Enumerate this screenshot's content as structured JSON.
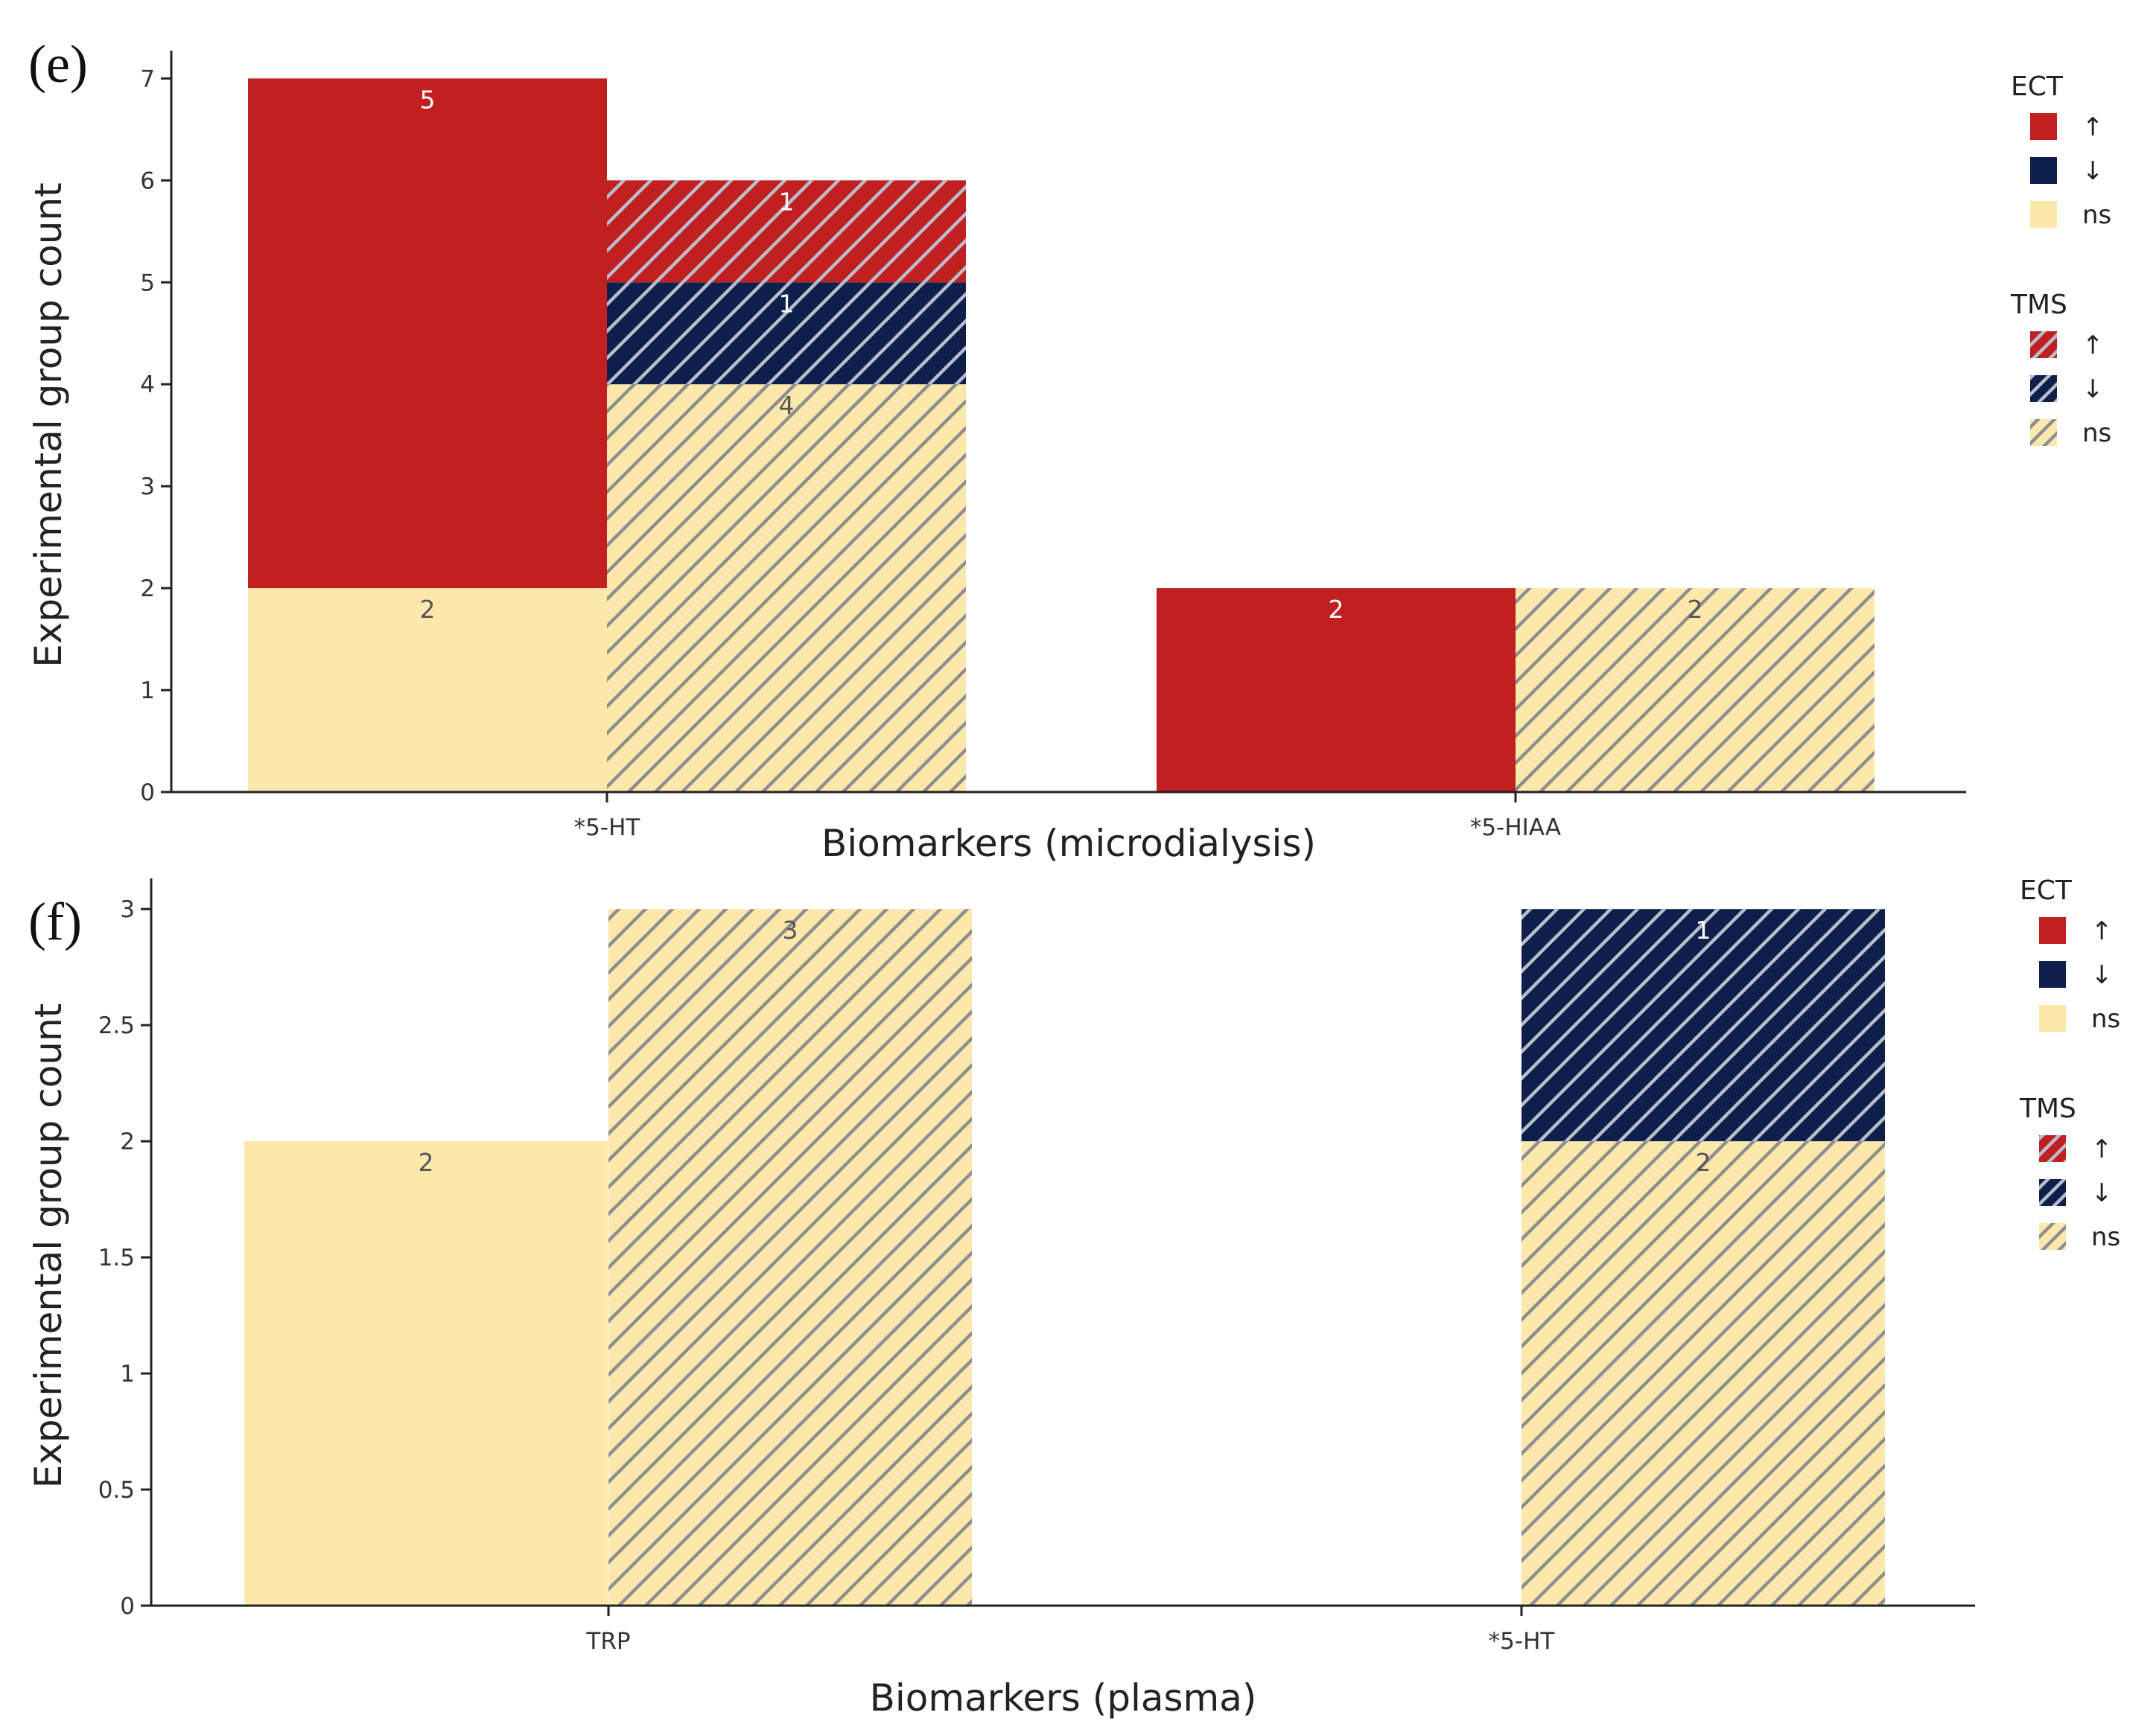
{
  "colors": {
    "up": "#c11f20",
    "down": "#0d1f4a",
    "ns": "#fde8ac",
    "hatch": "#8e8e8e",
    "hatch_on_dark": "#b9bdcc",
    "axis": "#222222"
  },
  "chart_data": [
    {
      "type": "bar",
      "panel_label": "(e)",
      "xlabel": "Biomarkers (microdialysis)",
      "ylabel": "Experimental group count",
      "ylim": [
        0,
        7.2
      ],
      "yticks": [
        "0",
        "1",
        "2",
        "3",
        "4",
        "5",
        "6",
        "7"
      ],
      "categories": [
        "*5-HT",
        "*5-HIAA"
      ],
      "groups": [
        {
          "category": "*5-HT",
          "method": "ECT",
          "segments": [
            {
              "status": "ns",
              "value": 2
            },
            {
              "status": "up",
              "value": 5
            }
          ]
        },
        {
          "category": "*5-HT",
          "method": "TMS",
          "segments": [
            {
              "status": "ns",
              "value": 4
            },
            {
              "status": "down",
              "value": 1
            },
            {
              "status": "up",
              "value": 1
            }
          ]
        },
        {
          "category": "*5-HIAA",
          "method": "ECT",
          "segments": [
            {
              "status": "up",
              "value": 2
            }
          ]
        },
        {
          "category": "*5-HIAA",
          "method": "TMS",
          "segments": [
            {
              "status": "ns",
              "value": 2
            }
          ]
        }
      ],
      "legend": [
        {
          "title": "ECT",
          "hatched": false,
          "items": [
            {
              "status": "up",
              "label": "↑"
            },
            {
              "status": "down",
              "label": "↓"
            },
            {
              "status": "ns",
              "label": "ns"
            }
          ]
        },
        {
          "title": "TMS",
          "hatched": true,
          "items": [
            {
              "status": "up",
              "label": "↑"
            },
            {
              "status": "down",
              "label": "↓"
            },
            {
              "status": "ns",
              "label": "ns"
            }
          ]
        }
      ],
      "legend_position": "right"
    },
    {
      "type": "bar",
      "panel_label": "(f)",
      "xlabel": "Biomarkers (plasma)",
      "ylabel": "Experimental group count",
      "ylim": [
        0,
        3.1
      ],
      "yticks": [
        "0",
        "0.5",
        "1",
        "1.5",
        "2",
        "2.5",
        "3"
      ],
      "categories": [
        "TRP",
        "*5-HT"
      ],
      "groups": [
        {
          "category": "TRP",
          "method": "ECT",
          "segments": [
            {
              "status": "ns",
              "value": 2
            }
          ]
        },
        {
          "category": "TRP",
          "method": "TMS",
          "segments": [
            {
              "status": "ns",
              "value": 3
            }
          ]
        },
        {
          "category": "*5-HT",
          "method": "TMS",
          "segments": [
            {
              "status": "ns",
              "value": 2
            },
            {
              "status": "down",
              "value": 1
            }
          ]
        }
      ],
      "legend": [
        {
          "title": "ECT",
          "hatched": false,
          "items": [
            {
              "status": "up",
              "label": "↑"
            },
            {
              "status": "down",
              "label": "↓"
            },
            {
              "status": "ns",
              "label": "ns"
            }
          ]
        },
        {
          "title": "TMS",
          "hatched": true,
          "items": [
            {
              "status": "up",
              "label": "↑"
            },
            {
              "status": "down",
              "label": "↓"
            },
            {
              "status": "ns",
              "label": "ns"
            }
          ]
        }
      ],
      "legend_position": "right"
    }
  ]
}
